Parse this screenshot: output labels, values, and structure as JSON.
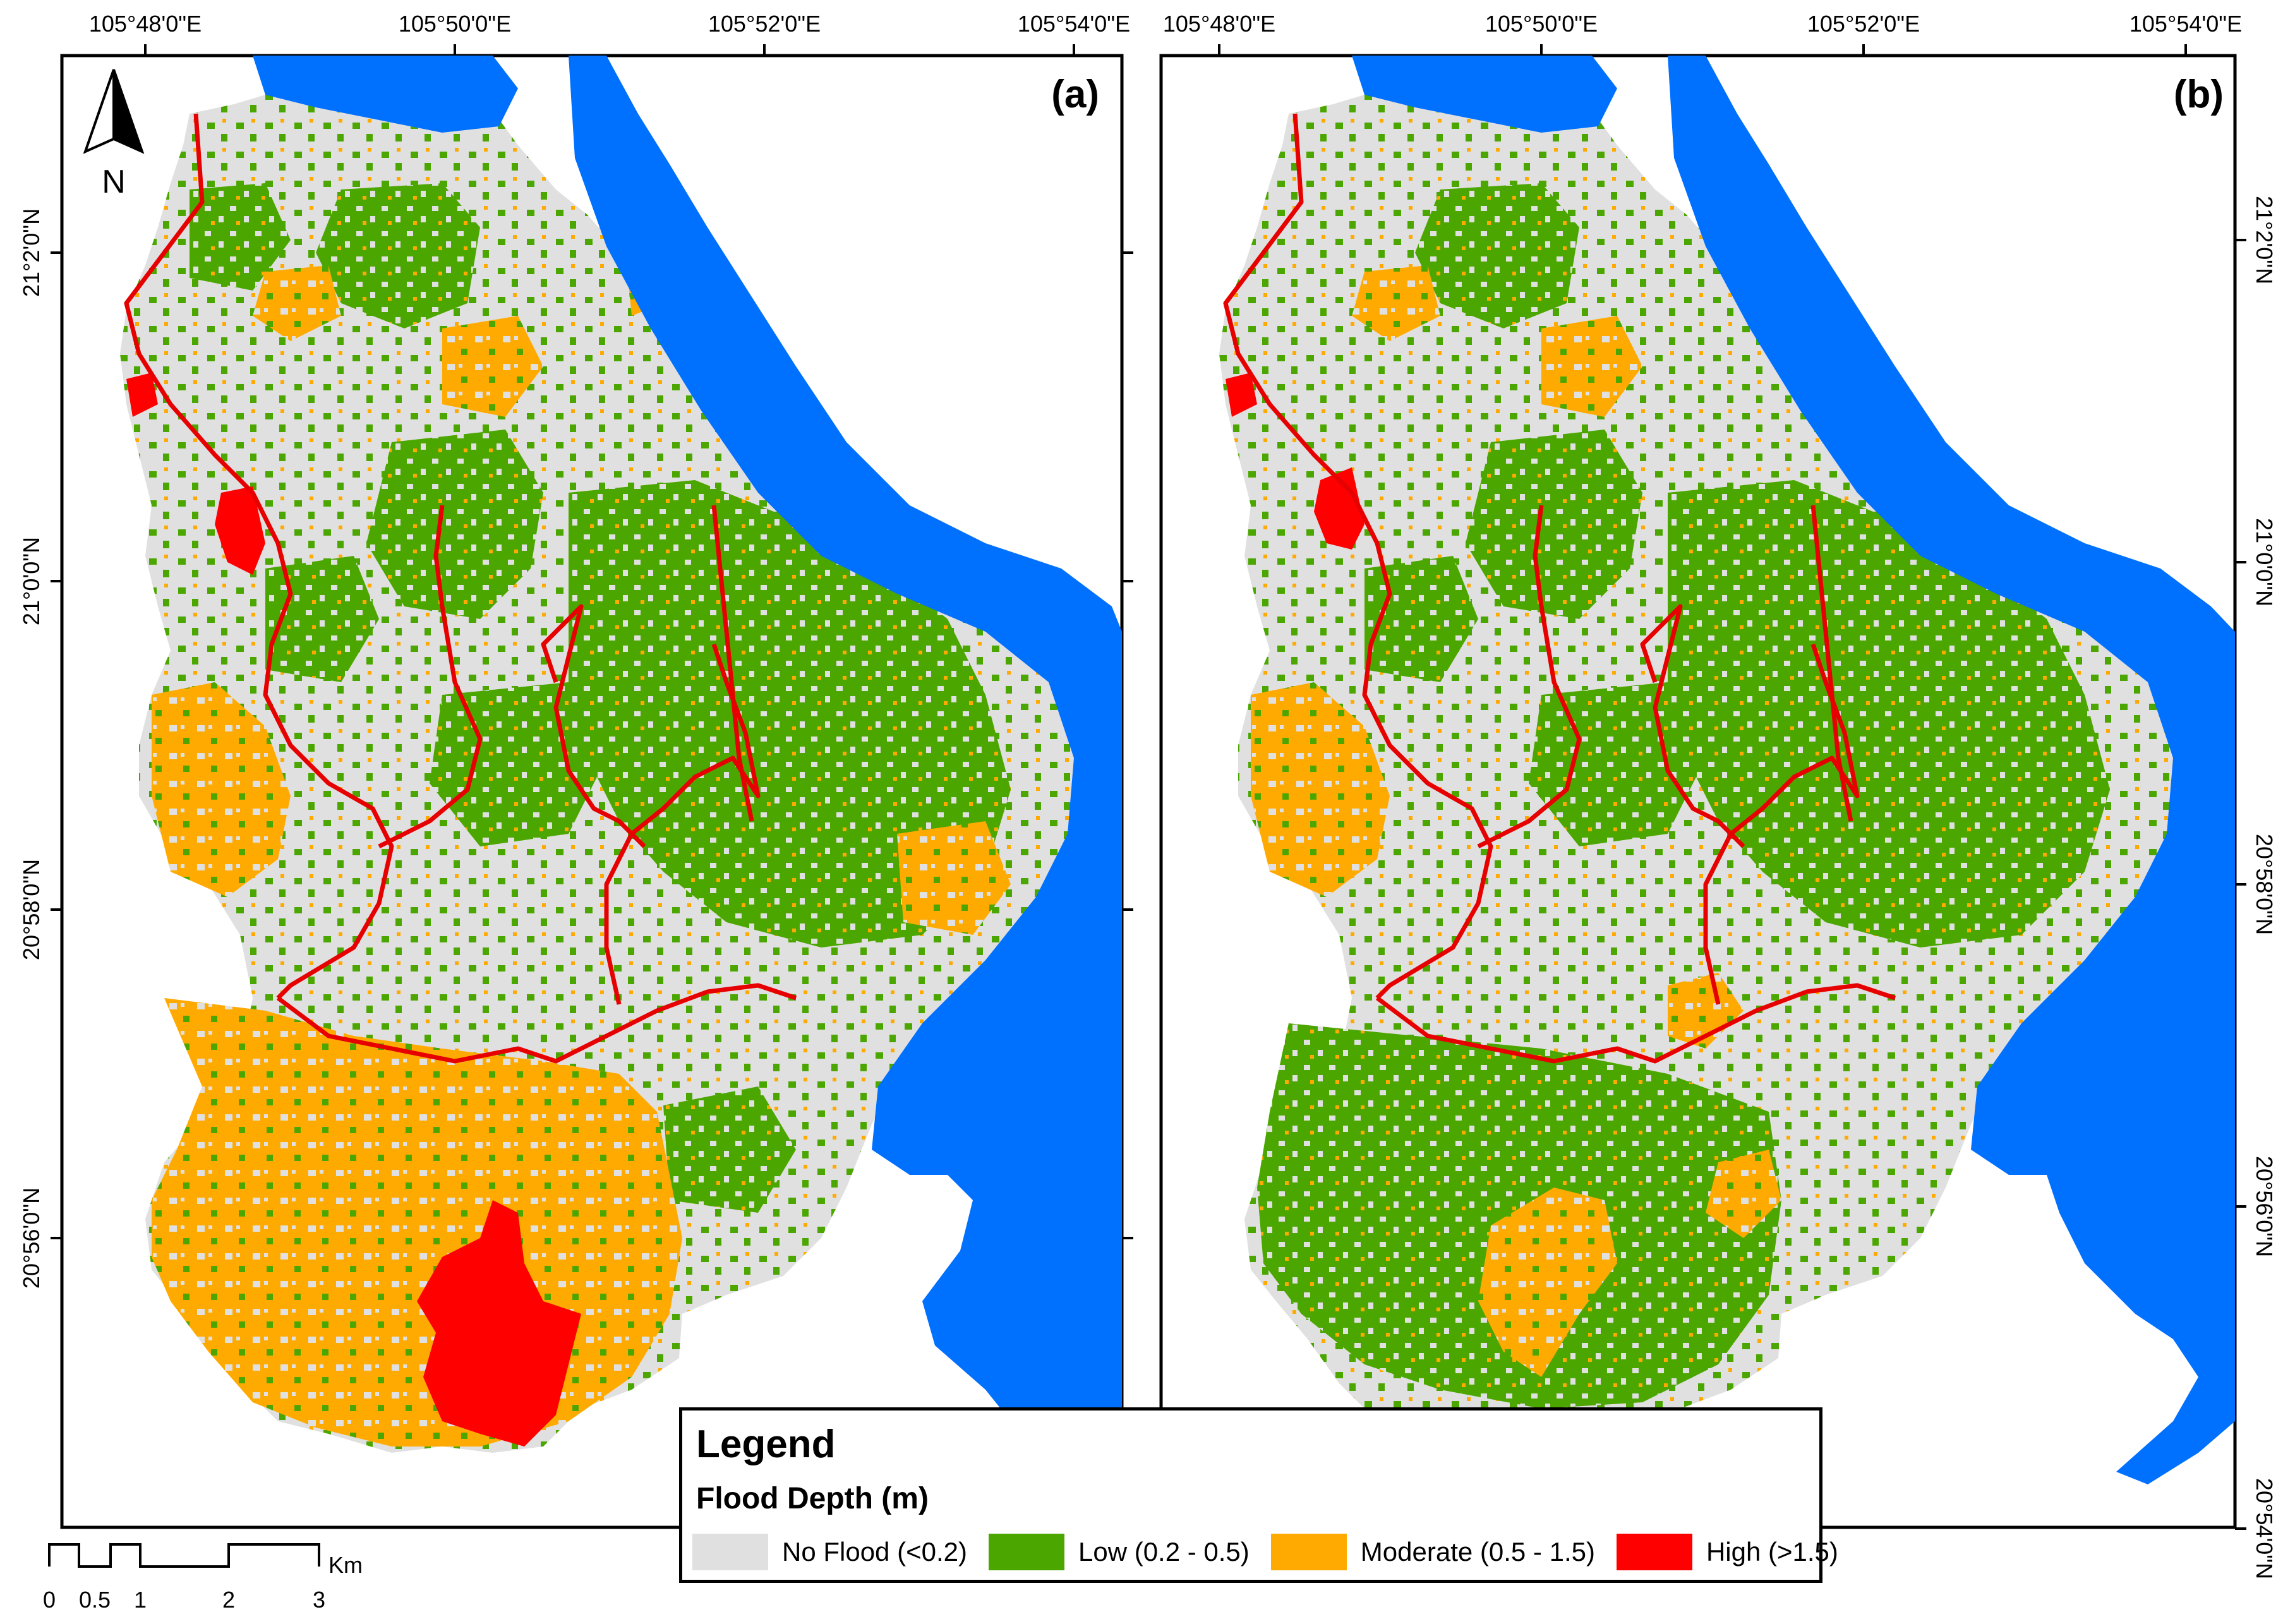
{
  "colors": {
    "no_flood": "#e0e0e0",
    "low": "#4ca600",
    "moderate": "#ffaa00",
    "high": "#ff0000",
    "water": "#0070ff",
    "river_line": "#e60000"
  },
  "panels": [
    {
      "id": "a",
      "label": "(a)"
    },
    {
      "id": "b",
      "label": "(b)"
    }
  ],
  "axes": {
    "top_longitude_labels": [
      "105°48'0\"E",
      "105°50'0\"E",
      "105°52'0\"E",
      "105°54'0\"E"
    ],
    "left_latitude_labels": [
      "21°2'0\"N",
      "21°0'0\"N",
      "20°58'0\"N",
      "20°56'0\"N"
    ],
    "right_latitude_labels": [
      "21°2'0\"N",
      "21°0'0\"N",
      "20°58'0\"N",
      "20°56'0\"N",
      "20°54'0\"N"
    ]
  },
  "north_arrow": {
    "label": "N",
    "icon": "north-arrow-icon"
  },
  "scalebar": {
    "ticks": [
      "0",
      "0.5",
      "1",
      "2",
      "3"
    ],
    "unit": "Km"
  },
  "legend": {
    "title": "Legend",
    "subtitle": "Flood Depth (m)",
    "items": [
      {
        "label": "No Flood (<0.2)",
        "color": "#e0e0e0"
      },
      {
        "label": "Low (0.2 - 0.5)",
        "color": "#4ca600"
      },
      {
        "label": "Moderate (0.5 - 1.5)",
        "color": "#ffaa00"
      },
      {
        "label": "High (>1.5)",
        "color": "#ff0000"
      }
    ]
  }
}
